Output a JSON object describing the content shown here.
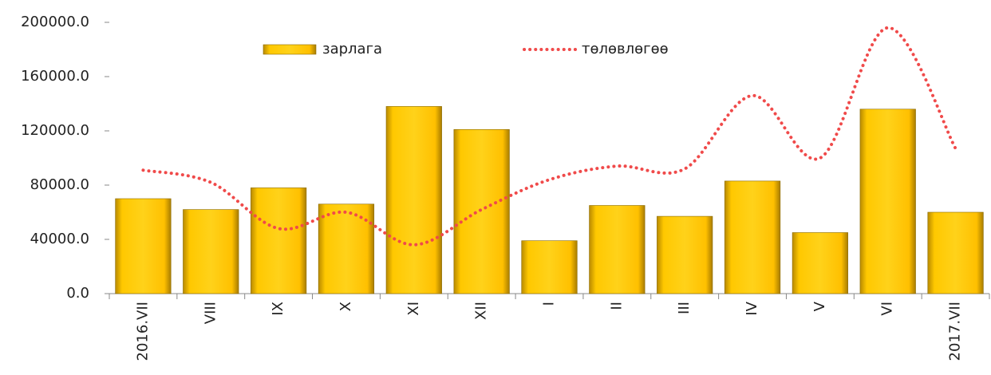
{
  "chart_data": {
    "type": "bar_line",
    "categories": [
      "2016.VII",
      "VIII",
      "IX",
      "X",
      "XI",
      "XII",
      "I",
      "II",
      "III",
      "IV",
      "V",
      "VI",
      "2017.VII"
    ],
    "series": [
      {
        "name": "зарлага",
        "type": "bar",
        "color": "#ffc000",
        "values": [
          70000,
          62000,
          78000,
          66000,
          138000,
          121000,
          39000,
          65000,
          57000,
          83000,
          45000,
          136000,
          60000
        ]
      },
      {
        "name": "төлөвлөгөө",
        "type": "line",
        "color": "#f04a4a",
        "values": [
          91000,
          82000,
          48000,
          60000,
          36000,
          62000,
          84000,
          94000,
          92000,
          146000,
          100000,
          196000,
          107000
        ]
      }
    ],
    "ylim": [
      0,
      200000
    ],
    "yticks": [
      {
        "value": 0,
        "label": "0.0"
      },
      {
        "value": 40000,
        "label": "40000.0"
      },
      {
        "value": 80000,
        "label": "80000.0"
      },
      {
        "value": 120000,
        "label": "120000.0"
      },
      {
        "value": 160000,
        "label": "160000.0"
      },
      {
        "value": 200000,
        "label": "200000.0"
      }
    ],
    "grid": false,
    "legend": "top"
  }
}
